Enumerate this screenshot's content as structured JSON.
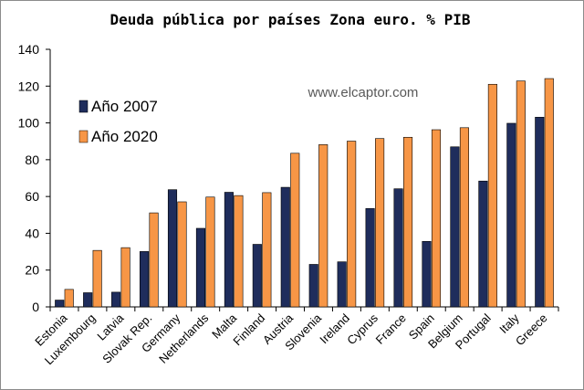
{
  "chart_data": {
    "type": "bar",
    "title": "Deuda pública por países Zona euro. % PIB",
    "watermark": "www.elcaptor.com",
    "xlabel": "",
    "ylabel": "",
    "ylim": [
      0,
      140
    ],
    "yticks": [
      0,
      20,
      40,
      60,
      80,
      100,
      120,
      140
    ],
    "grid": false,
    "legend_position": "top-left",
    "categories": [
      "Estonia",
      "Luxembourg",
      "Latvia",
      "Slovak Rep.",
      "Germany",
      "Netherlands",
      "Malta",
      "Finland",
      "Austria",
      "Slovenia",
      "Ireland",
      "Cyprus",
      "France",
      "Spain",
      "Belgium",
      "Portugal",
      "Italy",
      "Greece"
    ],
    "series": [
      {
        "name": "Año 2007",
        "color": "#1f2d5c",
        "values": [
          3.7,
          7.7,
          8,
          30.1,
          63.7,
          42.7,
          62.3,
          34,
          65,
          23.1,
          24.5,
          53.5,
          64.2,
          35.6,
          87,
          68.4,
          99.8,
          103.1
        ]
      },
      {
        "name": "Año 2020",
        "color": "#f79646",
        "values": [
          9.5,
          30.7,
          32.2,
          51.1,
          57.1,
          59.7,
          60.5,
          62.1,
          83.5,
          88.2,
          90.1,
          91.5,
          92.2,
          96.3,
          97.4,
          121,
          122.8,
          124.1
        ]
      }
    ]
  }
}
